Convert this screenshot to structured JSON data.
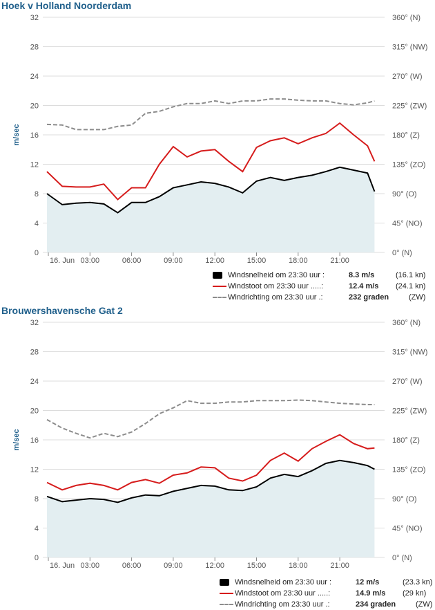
{
  "colors": {
    "title": "#1f5f8b",
    "speed": "#000000",
    "gust": "#d61c1c",
    "direction": "#8c8c8c",
    "area_fill": "#e3eef1",
    "grid": "#dcdcdc"
  },
  "chart_data": [
    {
      "type": "line",
      "title": "Hoek v Holland Noorderdam",
      "ylabel": "m/sec",
      "ylim": [
        0,
        32
      ],
      "y_ticks": [
        "0",
        "4",
        "8",
        "12",
        "16",
        "20",
        "24",
        "28",
        "32"
      ],
      "y2_ticks": [
        "0° (N)",
        "45° (NO)",
        "90° (O)",
        "135° (ZO)",
        "180° (Z)",
        "225° (ZW)",
        "270° (W)",
        "315° (NW)",
        "360° (N)"
      ],
      "x_ticks": [
        "16. Jun",
        "03:00",
        "06:00",
        "09:00",
        "12:00",
        "15:00",
        "18:00",
        "21:00"
      ],
      "x_range_hours": [
        0,
        23.5
      ],
      "series": [
        {
          "name": "Windsnelheid",
          "kind": "area",
          "x": [
            0,
            1,
            2,
            3,
            4,
            5,
            6,
            7,
            8,
            9,
            10,
            11,
            12,
            13,
            14,
            15,
            16,
            17,
            18,
            19,
            20,
            21,
            22,
            23,
            23.5
          ],
          "values": [
            8.0,
            6.5,
            6.7,
            6.8,
            6.6,
            5.4,
            6.8,
            6.8,
            7.6,
            8.8,
            9.2,
            9.6,
            9.4,
            8.9,
            8.1,
            9.7,
            10.2,
            9.8,
            10.2,
            10.5,
            11.0,
            11.6,
            11.2,
            10.8,
            8.3
          ]
        },
        {
          "name": "Windstoot",
          "kind": "line",
          "x": [
            0,
            1,
            2,
            3,
            4,
            5,
            6,
            7,
            8,
            9,
            10,
            11,
            12,
            13,
            14,
            15,
            16,
            17,
            18,
            19,
            20,
            21,
            22,
            23,
            23.5
          ],
          "values": [
            11.0,
            9.0,
            8.9,
            8.9,
            9.3,
            7.2,
            8.8,
            8.8,
            12.0,
            14.4,
            13.0,
            13.8,
            14.0,
            12.4,
            11.0,
            14.3,
            15.2,
            15.6,
            14.8,
            15.6,
            16.2,
            17.6,
            16.0,
            14.5,
            12.4
          ]
        },
        {
          "name": "Windrichting",
          "kind": "dashed",
          "unit": "degrees",
          "x": [
            0,
            1,
            2,
            3,
            4,
            5,
            6,
            7,
            8,
            9,
            10,
            11,
            12,
            13,
            14,
            15,
            16,
            17,
            18,
            19,
            20,
            21,
            22,
            23,
            23.5
          ],
          "values": [
            196,
            195,
            188,
            188,
            188,
            193,
            195,
            213,
            216,
            223,
            228,
            228,
            232,
            228,
            232,
            232,
            235,
            235,
            233,
            232,
            232,
            228,
            226,
            229,
            232
          ]
        }
      ],
      "legend": [
        {
          "label": "Windsnelheid om 23:30 uur :",
          "value": "8.3 m/s",
          "unit": "(16.1 kn)"
        },
        {
          "label": "Windstoot om 23:30 uur .....:",
          "value": "12.4 m/s",
          "unit": "(24.1 kn)"
        },
        {
          "label": "Windrichting om 23:30 uur .:",
          "value": "232 graden",
          "unit": "(ZW)"
        }
      ],
      "legend_position": "bottom-right",
      "grid": true
    },
    {
      "type": "line",
      "title": "Brouwershavensche Gat 2",
      "ylabel": "m/sec",
      "ylim": [
        0,
        32
      ],
      "y_ticks": [
        "0",
        "4",
        "8",
        "12",
        "16",
        "20",
        "24",
        "28",
        "32"
      ],
      "y2_ticks": [
        "0° (N)",
        "45° (NO)",
        "90° (O)",
        "135° (ZO)",
        "180° (Z)",
        "225° (ZW)",
        "270° (W)",
        "315° (NW)",
        "360° (N)"
      ],
      "x_ticks": [
        "16. Jun",
        "03:00",
        "06:00",
        "09:00",
        "12:00",
        "15:00",
        "18:00",
        "21:00"
      ],
      "x_range_hours": [
        0,
        23.5
      ],
      "series": [
        {
          "name": "Windsnelheid",
          "kind": "area",
          "x": [
            0,
            1,
            2,
            3,
            4,
            5,
            6,
            7,
            8,
            9,
            10,
            11,
            12,
            13,
            14,
            15,
            16,
            17,
            18,
            19,
            20,
            21,
            22,
            23,
            23.5
          ],
          "values": [
            8.3,
            7.6,
            7.8,
            8.0,
            7.9,
            7.5,
            8.1,
            8.5,
            8.4,
            9.0,
            9.4,
            9.8,
            9.7,
            9.2,
            9.1,
            9.6,
            10.8,
            11.3,
            11.0,
            11.8,
            12.8,
            13.2,
            12.9,
            12.5,
            12.0
          ]
        },
        {
          "name": "Windstoot",
          "kind": "line",
          "x": [
            0,
            1,
            2,
            3,
            4,
            5,
            6,
            7,
            8,
            9,
            10,
            11,
            12,
            13,
            14,
            15,
            16,
            17,
            18,
            19,
            20,
            21,
            22,
            23,
            23.5
          ],
          "values": [
            10.2,
            9.2,
            9.8,
            10.1,
            9.8,
            9.2,
            10.2,
            10.6,
            10.1,
            11.2,
            11.5,
            12.3,
            12.2,
            10.8,
            10.4,
            11.2,
            13.2,
            14.2,
            13.1,
            14.8,
            15.8,
            16.7,
            15.5,
            14.8,
            14.9
          ]
        },
        {
          "name": "Windrichting",
          "kind": "dashed",
          "unit": "degrees",
          "x": [
            0,
            1,
            2,
            3,
            4,
            5,
            6,
            7,
            8,
            9,
            10,
            11,
            12,
            13,
            14,
            15,
            16,
            17,
            18,
            19,
            20,
            21,
            22,
            23,
            23.5
          ],
          "values": [
            211,
            198,
            190,
            183,
            190,
            185,
            192,
            205,
            220,
            229,
            240,
            236,
            236,
            238,
            238,
            240,
            240,
            240,
            241,
            240,
            238,
            236,
            235,
            234,
            234
          ]
        }
      ],
      "legend": [
        {
          "label": "Windsnelheid om 23:30 uur :",
          "value": "12 m/s",
          "unit": "(23.3 kn)"
        },
        {
          "label": "Windstoot om 23:30 uur .....:",
          "value": "14.9 m/s",
          "unit": "(29 kn)"
        },
        {
          "label": "Windrichting om 23:30 uur .:",
          "value": "234 graden",
          "unit": "(ZW)"
        }
      ],
      "legend_position": "bottom-right",
      "grid": true
    }
  ]
}
